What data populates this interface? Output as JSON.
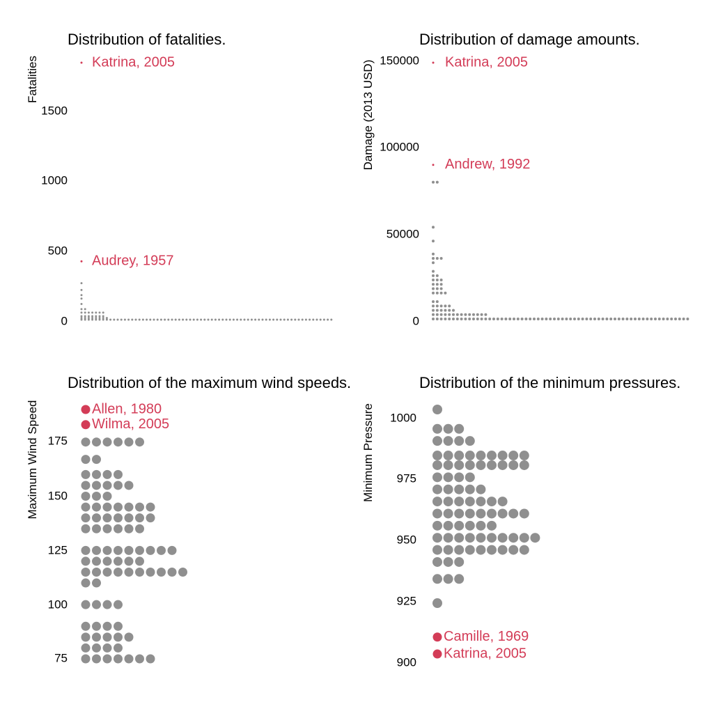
{
  "colors": {
    "dot": "#8f8f8f",
    "highlight": "#d33c57",
    "text": "#000000",
    "background": "#ffffff"
  },
  "chart_data": [
    {
      "type": "scatter",
      "subtype": "dot-plot",
      "title": "Distribution of fatalities.",
      "ylabel": "Fatalities",
      "xlabel": "",
      "ylim": [
        0,
        1833
      ],
      "yticks": [
        "0",
        "500",
        "1000",
        "1500"
      ],
      "grid": false,
      "bins": [
        {
          "y": 0,
          "count": 70
        },
        {
          "y": 12,
          "count": 8
        },
        {
          "y": 25,
          "count": 7
        },
        {
          "y": 50,
          "count": 7
        },
        {
          "y": 75,
          "count": 2
        },
        {
          "y": 112,
          "count": 1
        },
        {
          "y": 150,
          "count": 1
        },
        {
          "y": 175,
          "count": 1
        },
        {
          "y": 212,
          "count": 1
        },
        {
          "y": 260,
          "count": 1
        }
      ],
      "highlights": [
        {
          "y": 1833,
          "label": "Katrina, 2005"
        },
        {
          "y": 416,
          "label": "Audrey, 1957"
        }
      ]
    },
    {
      "type": "scatter",
      "subtype": "dot-plot",
      "title": "Distribution of damage amounts.",
      "ylabel": "Damage (2013 USD)",
      "xlabel": "",
      "ylim": [
        0,
        148000
      ],
      "yticks": [
        "0",
        "50000",
        "100000",
        "150000"
      ],
      "grid": false,
      "bins": [
        {
          "y": 0,
          "count": 64
        },
        {
          "y": 2500,
          "count": 14
        },
        {
          "y": 5000,
          "count": 6
        },
        {
          "y": 7500,
          "count": 5
        },
        {
          "y": 10000,
          "count": 2
        },
        {
          "y": 15000,
          "count": 4
        },
        {
          "y": 17500,
          "count": 3
        },
        {
          "y": 20000,
          "count": 3
        },
        {
          "y": 22500,
          "count": 3
        },
        {
          "y": 25000,
          "count": 2
        },
        {
          "y": 27500,
          "count": 1
        },
        {
          "y": 32500,
          "count": 1
        },
        {
          "y": 35000,
          "count": 3
        },
        {
          "y": 37500,
          "count": 1
        },
        {
          "y": 45000,
          "count": 1
        },
        {
          "y": 53000,
          "count": 1
        },
        {
          "y": 79000,
          "count": 2
        }
      ],
      "highlights": [
        {
          "y": 148000,
          "label": "Katrina, 2005"
        },
        {
          "y": 89000,
          "label": "Andrew, 1992"
        }
      ]
    },
    {
      "type": "scatter",
      "subtype": "dot-plot",
      "title": "Distribution of the maximum wind speeds.",
      "ylabel": "Maximum Wind Speed",
      "xlabel": "",
      "ylim": [
        75,
        190
      ],
      "yticks": [
        "75",
        "100",
        "125",
        "150",
        "175"
      ],
      "grid": false,
      "bins": [
        {
          "y": 75,
          "count": 7
        },
        {
          "y": 80,
          "count": 4
        },
        {
          "y": 85,
          "count": 5
        },
        {
          "y": 90,
          "count": 4
        },
        {
          "y": 100,
          "count": 4
        },
        {
          "y": 110,
          "count": 2
        },
        {
          "y": 115,
          "count": 10
        },
        {
          "y": 120,
          "count": 6
        },
        {
          "y": 125,
          "count": 9
        },
        {
          "y": 135,
          "count": 6
        },
        {
          "y": 140,
          "count": 7
        },
        {
          "y": 145,
          "count": 7
        },
        {
          "y": 150,
          "count": 3
        },
        {
          "y": 155,
          "count": 5
        },
        {
          "y": 160,
          "count": 4
        },
        {
          "y": 167,
          "count": 2
        },
        {
          "y": 175,
          "count": 6
        }
      ],
      "highlights": [
        {
          "y": 190,
          "label": "Allen, 1980"
        },
        {
          "y": 183,
          "label": "Wilma, 2005"
        }
      ]
    },
    {
      "type": "scatter",
      "subtype": "dot-plot",
      "title": "Distribution of the minimum pressures.",
      "ylabel": "Minimum Pressure",
      "xlabel": "",
      "ylim": [
        900,
        1003
      ],
      "yticks": [
        "900",
        "925",
        "950",
        "975",
        "1000"
      ],
      "grid": false,
      "bins": [
        {
          "y": 923,
          "count": 1
        },
        {
          "y": 933,
          "count": 3
        },
        {
          "y": 940,
          "count": 3
        },
        {
          "y": 945,
          "count": 9
        },
        {
          "y": 950,
          "count": 10
        },
        {
          "y": 955,
          "count": 6
        },
        {
          "y": 960,
          "count": 9
        },
        {
          "y": 965,
          "count": 7
        },
        {
          "y": 970,
          "count": 5
        },
        {
          "y": 975,
          "count": 4
        },
        {
          "y": 980,
          "count": 9
        },
        {
          "y": 984,
          "count": 9
        },
        {
          "y": 990,
          "count": 4
        },
        {
          "y": 995,
          "count": 3
        },
        {
          "y": 1003,
          "count": 1
        }
      ],
      "highlights": [
        {
          "y": 909,
          "label": "Camille, 1969"
        },
        {
          "y": 902,
          "label": "Katrina, 2005"
        }
      ]
    }
  ]
}
